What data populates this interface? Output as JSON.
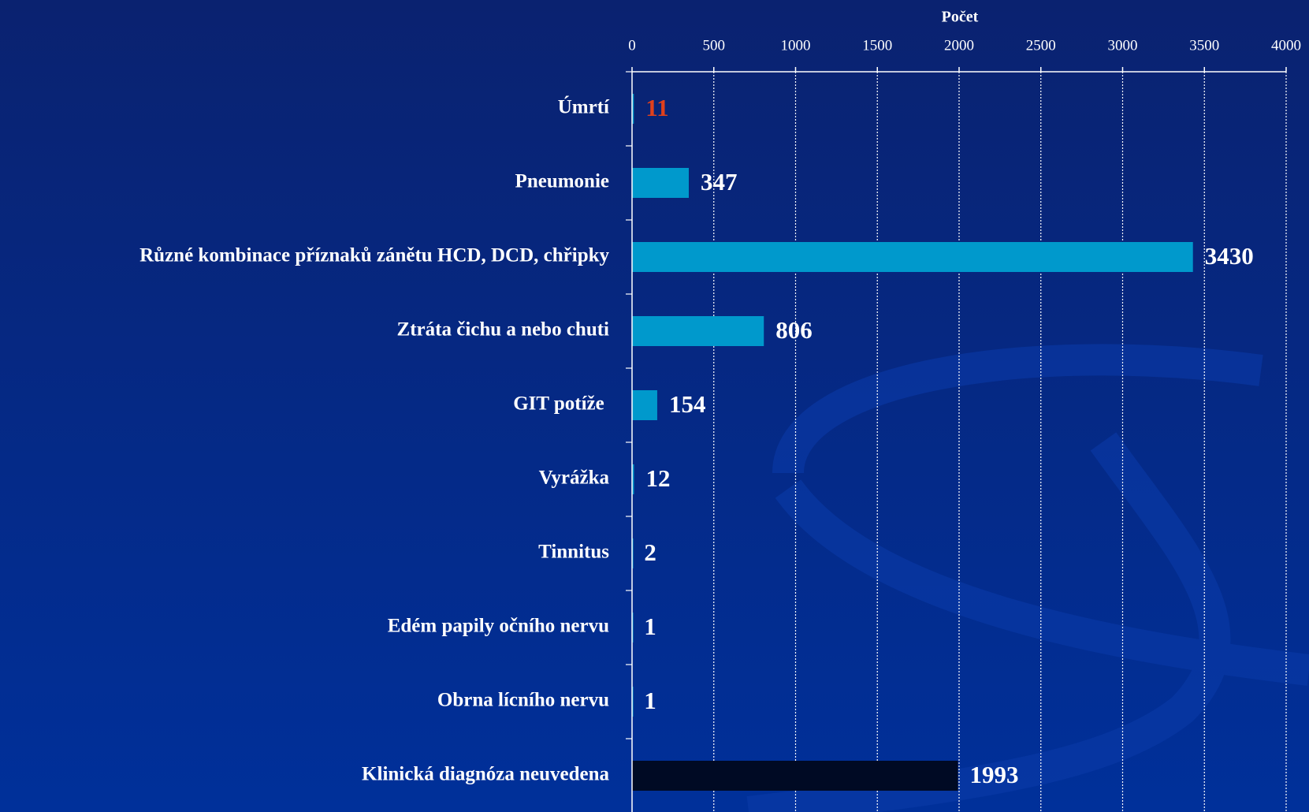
{
  "chart_data": {
    "type": "hbar",
    "x_label": "Počet",
    "categories": [
      "Úmrtí",
      "Pneumonie",
      "Různé kombinace příznaků zánětu HCD, DCD, chřipky",
      "Ztráta čichu a nebo chuti",
      "GIT potíže ",
      "Vyrážka",
      "Tinnitus",
      "Edém papily očního nervu",
      "Obrna lícního nervu",
      "Klinická diagnóza neuvedena"
    ],
    "values": [
      11,
      347,
      3430,
      806,
      154,
      12,
      2,
      1,
      1,
      1993
    ],
    "colors": [
      "#0099cc",
      "#0099cc",
      "#0099cc",
      "#0099cc",
      "#0099cc",
      "#0099cc",
      "#0099cc",
      "#0099cc",
      "#0099cc",
      "#000a24"
    ],
    "value_label_colors": [
      "#e0401c",
      "#ffffff",
      "#ffffff",
      "#ffffff",
      "#ffffff",
      "#ffffff",
      "#ffffff",
      "#ffffff",
      "#ffffff",
      "#ffffff"
    ],
    "xlim": [
      0,
      4000
    ],
    "xticks": [
      0,
      500,
      1000,
      1500,
      2000,
      2500,
      3000,
      3500,
      4000
    ],
    "grid": true
  }
}
